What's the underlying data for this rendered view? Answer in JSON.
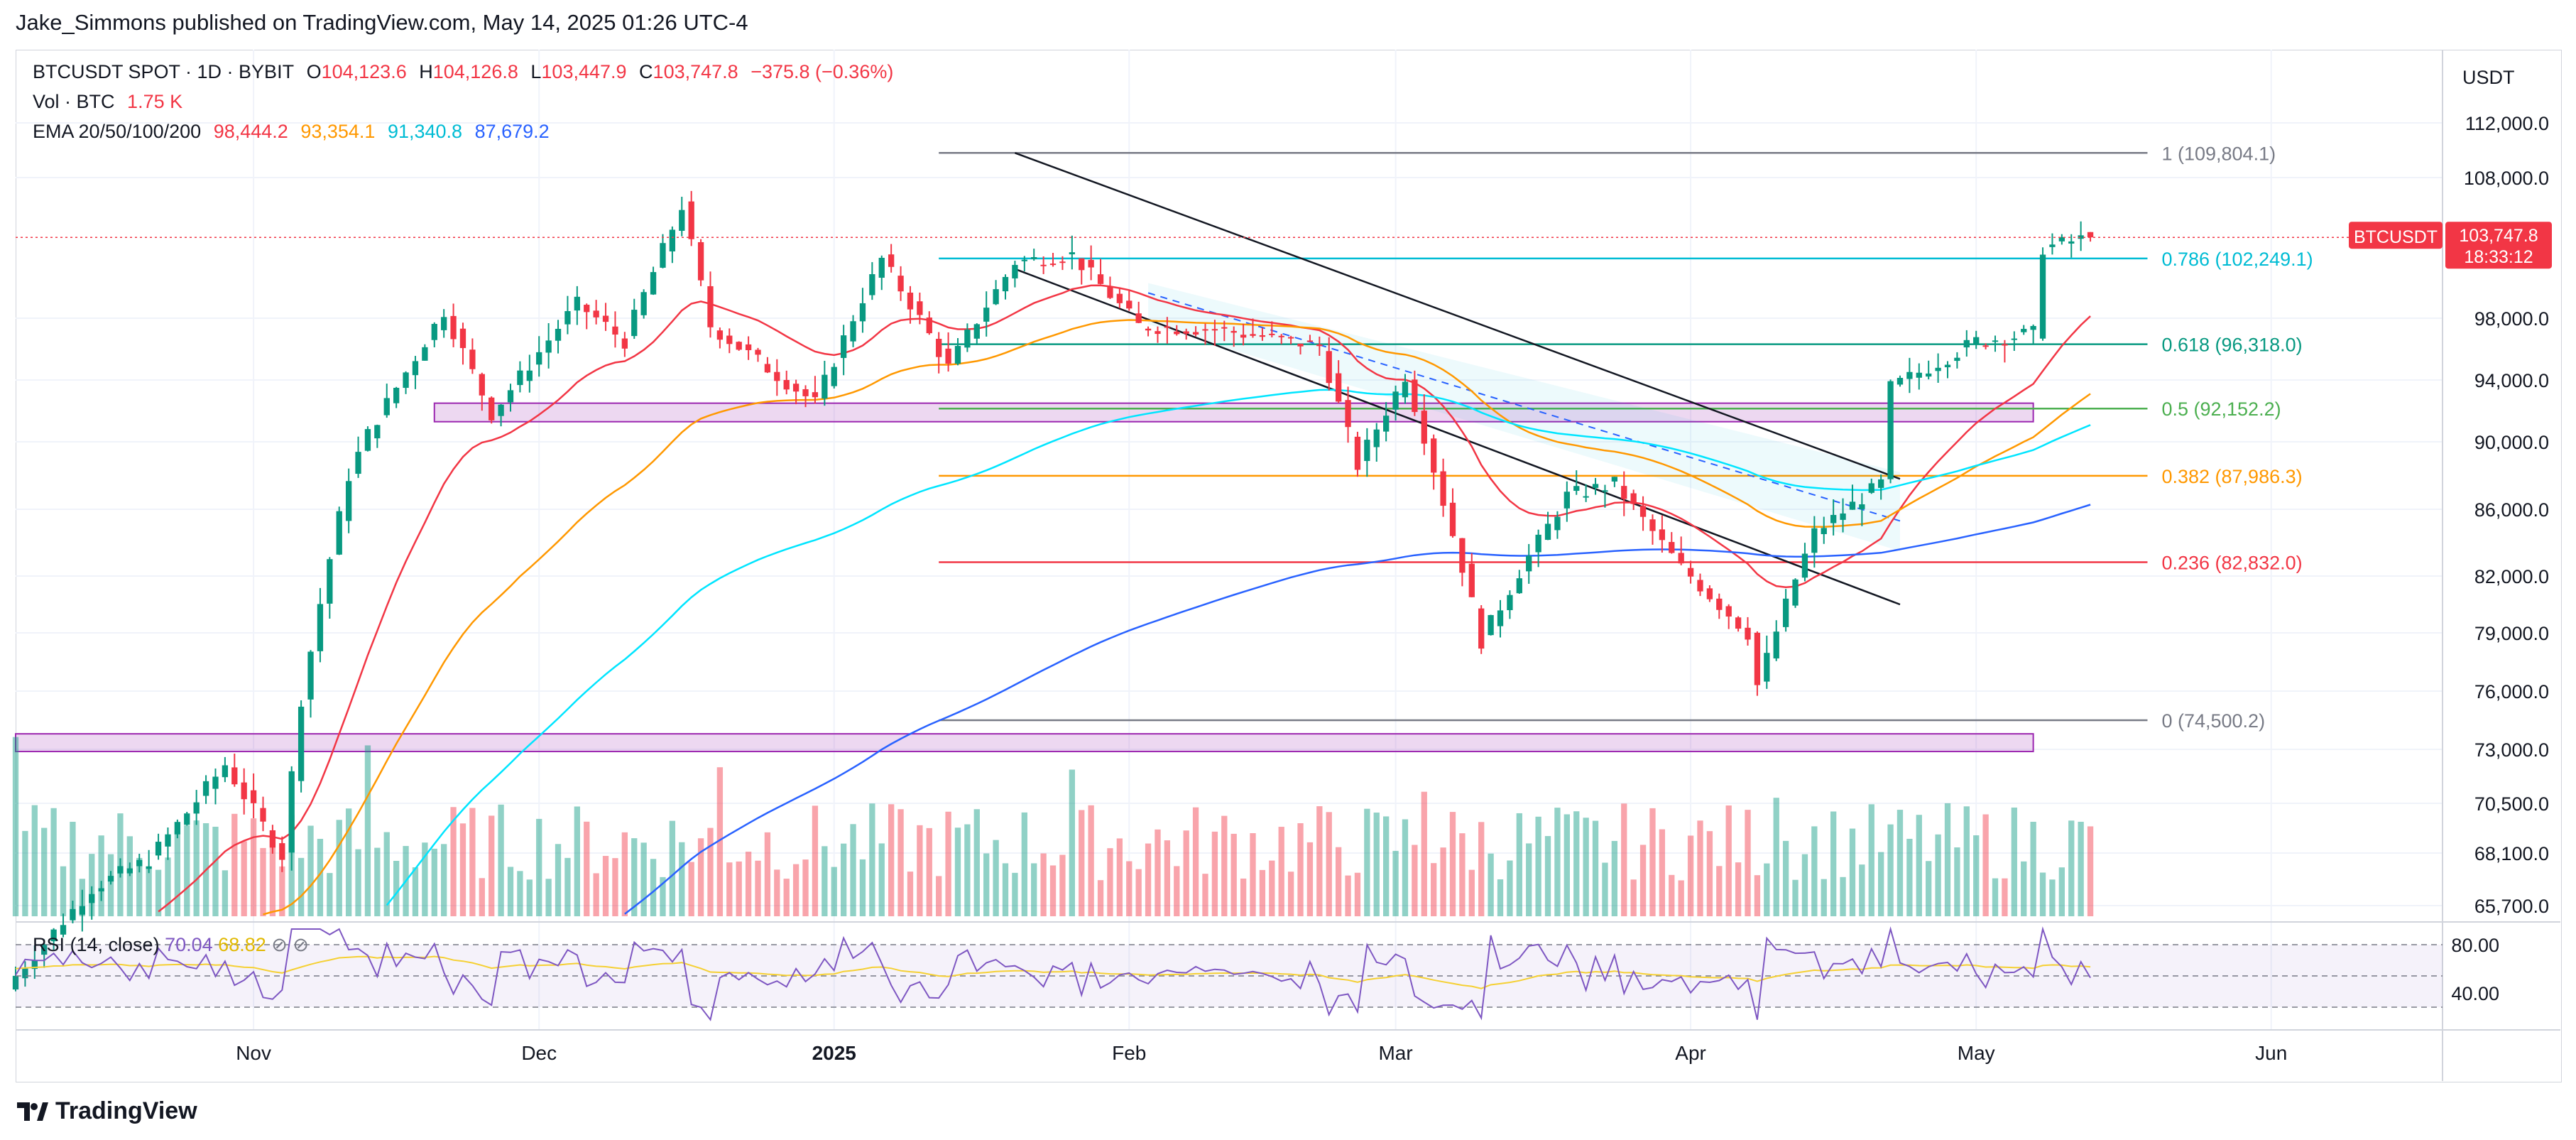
{
  "header": {
    "published": "Jake_Simmons published on TradingView.com, May 14, 2025 01:26 UTC-4"
  },
  "legend": {
    "symbol": "BTCUSDT SPOT · 1D · BYBIT",
    "o_label": "O",
    "o": "104,123.6",
    "h_label": "H",
    "h": "104,126.8",
    "l_label": "L",
    "l": "103,447.9",
    "c_label": "C",
    "c": "103,747.8",
    "change": "−375.8 (−0.36%)",
    "vol_label": "Vol · BTC",
    "vol": "1.75 K",
    "ema_label": "EMA 20/50/100/200",
    "ema20": "98,444.2",
    "ema50": "93,354.1",
    "ema100": "91,340.8",
    "ema200": "87,679.2"
  },
  "rsi": {
    "label": "RSI (14, close)",
    "value": "70.04",
    "ma_value": "68.82"
  },
  "price_axis": {
    "currency": "USDT",
    "ticks": [
      "112,000.0",
      "108,000.0",
      "98,000.0",
      "94,000.0",
      "90,000.0",
      "86,000.0",
      "82,000.0",
      "79,000.0",
      "76,000.0",
      "73,000.0",
      "70,500.0",
      "68,100.0",
      "65,700.0"
    ],
    "current_symbol": "BTCUSDT",
    "current_price": "103,747.8",
    "countdown": "18:33:12"
  },
  "rsi_axis": {
    "ticks": [
      "80.00",
      "40.00"
    ]
  },
  "time_axis": {
    "ticks": [
      "Nov",
      "Dec",
      "2025",
      "Feb",
      "Mar",
      "Apr",
      "May",
      "Jun"
    ]
  },
  "fib_labels": [
    {
      "label": "1 (109,804.1)",
      "color": "#787b86"
    },
    {
      "label": "0.786 (102,249.1)",
      "color": "#00bcd4"
    },
    {
      "label": "0.618 (96,318.0)",
      "color": "#089981"
    },
    {
      "label": "0.5 (92,152.2)",
      "color": "#4caf50"
    },
    {
      "label": "0.382 (87,986.3)",
      "color": "#ff9800"
    },
    {
      "label": "0.236 (82,832.0)",
      "color": "#f23645"
    },
    {
      "label": "0 (74,500.2)",
      "color": "#787b86"
    }
  ],
  "colors": {
    "up": "#089981",
    "down": "#f23645",
    "ema20": "#f23645",
    "ema50": "#ff9800",
    "ema100": "#00e5ff",
    "ema200": "#2962ff",
    "zone": "#9c27b0",
    "rsi": "#7e57c2",
    "rsi_ma": "#f5d033"
  },
  "footer": {
    "brand": "TradingView"
  },
  "chart_data": {
    "type": "candlestick",
    "title": "BTCUSDT SPOT · 1D · BYBIT",
    "x_range": [
      "2024-10-07",
      "2025-06-19"
    ],
    "y_range": [
      65700,
      112000
    ],
    "fibonacci_retracement": {
      "from": 74500.2,
      "to": 109804.1,
      "levels": [
        1,
        0.786,
        0.618,
        0.5,
        0.382,
        0.236,
        0
      ]
    },
    "zones": [
      {
        "name": "support zone",
        "from": [
          72900,
          73800
        ],
        "x": [
          "2024-10-07",
          "2025-05-07"
        ]
      },
      {
        "name": "resistance-turned-support zone",
        "from": [
          91300,
          92500
        ],
        "x": [
          "2024-11-20",
          "2025-05-07"
        ]
      }
    ],
    "channel": [
      {
        "points": [
          [
            "2025-01-20",
            109800
          ],
          [
            "2025-04-23",
            87800
          ]
        ]
      },
      {
        "points": [
          [
            "2025-01-20",
            101500
          ],
          [
            "2025-04-23",
            80500
          ]
        ]
      }
    ],
    "price_path": [
      {
        "date": "2024-10-07",
        "close": 62500
      },
      {
        "date": "2024-10-15",
        "close": 66500
      },
      {
        "date": "2024-10-21",
        "close": 67800
      },
      {
        "date": "2024-10-29",
        "close": 72300
      },
      {
        "date": "2024-11-04",
        "close": 68000
      },
      {
        "date": "2024-11-06",
        "close": 75600
      },
      {
        "date": "2024-11-11",
        "close": 88000
      },
      {
        "date": "2024-11-13",
        "close": 90500
      },
      {
        "date": "2024-11-21",
        "close": 98500
      },
      {
        "date": "2024-11-26",
        "close": 91800
      },
      {
        "date": "2024-12-05",
        "close": 99000
      },
      {
        "date": "2024-12-10",
        "close": 96500
      },
      {
        "date": "2024-12-16",
        "close": 106000
      },
      {
        "date": "2024-12-19",
        "close": 97500
      },
      {
        "date": "2024-12-30",
        "close": 92500
      },
      {
        "date": "2025-01-06",
        "close": 102200
      },
      {
        "date": "2025-01-13",
        "close": 94800
      },
      {
        "date": "2025-01-20",
        "close": 102000
      },
      {
        "date": "2025-01-26",
        "close": 102500
      },
      {
        "date": "2025-02-02",
        "close": 97500
      },
      {
        "date": "2025-02-10",
        "close": 97300
      },
      {
        "date": "2025-02-21",
        "close": 96200
      },
      {
        "date": "2025-02-25",
        "close": 88600
      },
      {
        "date": "2025-03-02",
        "close": 94300
      },
      {
        "date": "2025-03-10",
        "close": 78600
      },
      {
        "date": "2025-03-19",
        "close": 86800
      },
      {
        "date": "2025-03-24",
        "close": 87500
      },
      {
        "date": "2025-03-31",
        "close": 82500
      },
      {
        "date": "2025-04-07",
        "close": 79000
      },
      {
        "date": "2025-04-08",
        "close": 76300
      },
      {
        "date": "2025-04-14",
        "close": 84600
      },
      {
        "date": "2025-04-21",
        "close": 87500
      },
      {
        "date": "2025-04-22",
        "close": 93500
      },
      {
        "date": "2025-05-01",
        "close": 96500
      },
      {
        "date": "2025-05-07",
        "close": 97000
      },
      {
        "date": "2025-05-08",
        "close": 103000
      },
      {
        "date": "2025-05-13",
        "close": 103747.8
      }
    ]
  }
}
